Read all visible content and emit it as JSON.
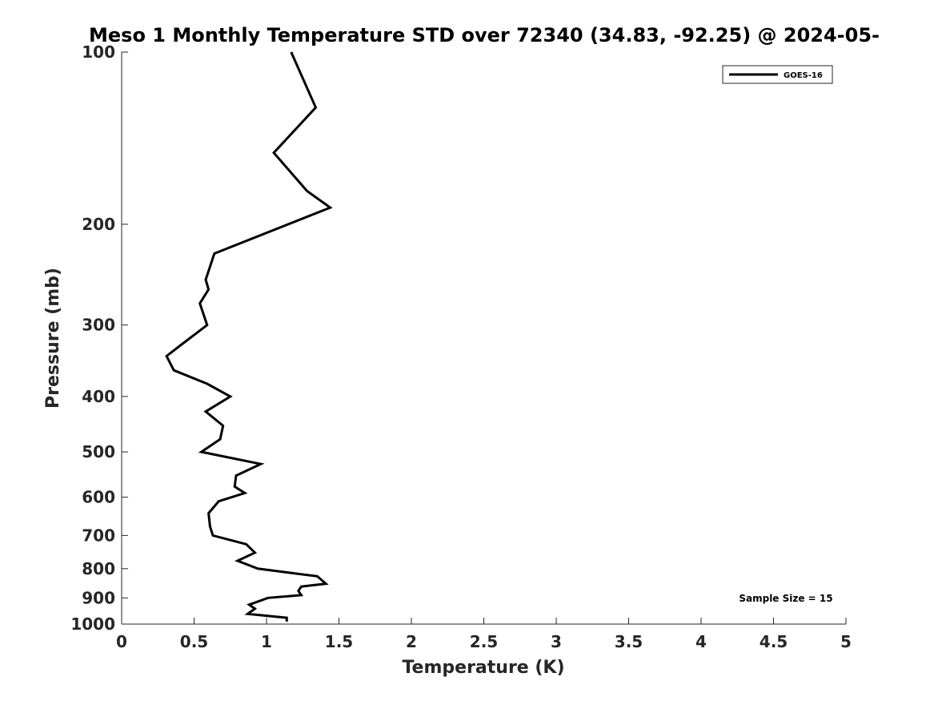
{
  "chart_data": {
    "type": "line",
    "title": "Meso 1 Monthly Temperature STD over 72340 (34.83, -92.25) @ 2024-05-",
    "xlabel": "Temperature (K)",
    "ylabel": "Pressure (mb)",
    "xlim": [
      0,
      5
    ],
    "ylim": [
      1000,
      100
    ],
    "y_scale": "log",
    "x_ticks": [
      "0",
      "0.5",
      "1",
      "1.5",
      "2",
      "2.5",
      "3",
      "3.5",
      "4",
      "4.5",
      "5"
    ],
    "y_ticks": [
      "100",
      "200",
      "300",
      "400",
      "500",
      "600",
      "700",
      "800",
      "900",
      "1000"
    ],
    "grid": false,
    "legend_position": "top-right",
    "annotation": "Sample Size = 15",
    "series": [
      {
        "name": "GOES-16",
        "color": "#000000",
        "x": [
          1.17,
          1.34,
          1.05,
          1.28,
          1.44,
          0.64,
          0.58,
          0.6,
          0.54,
          0.59,
          0.41,
          0.31,
          0.36,
          0.59,
          0.75,
          0.58,
          0.7,
          0.68,
          0.55,
          0.96,
          0.79,
          0.78,
          0.85,
          0.67,
          0.6,
          0.61,
          0.63,
          0.86,
          0.92,
          0.8,
          0.94,
          1.35,
          1.41,
          1.24,
          1.22,
          1.24,
          1.01,
          0.88,
          0.92,
          0.87,
          1.14,
          1.14
        ],
        "y": [
          100,
          125,
          150,
          175,
          187,
          225,
          250,
          260,
          275,
          300,
          325,
          340,
          360,
          380,
          400,
          425,
          450,
          475,
          500,
          525,
          550,
          575,
          590,
          610,
          640,
          675,
          700,
          725,
          750,
          775,
          800,
          825,
          850,
          860,
          875,
          890,
          900,
          925,
          940,
          960,
          975,
          990
        ]
      }
    ]
  }
}
